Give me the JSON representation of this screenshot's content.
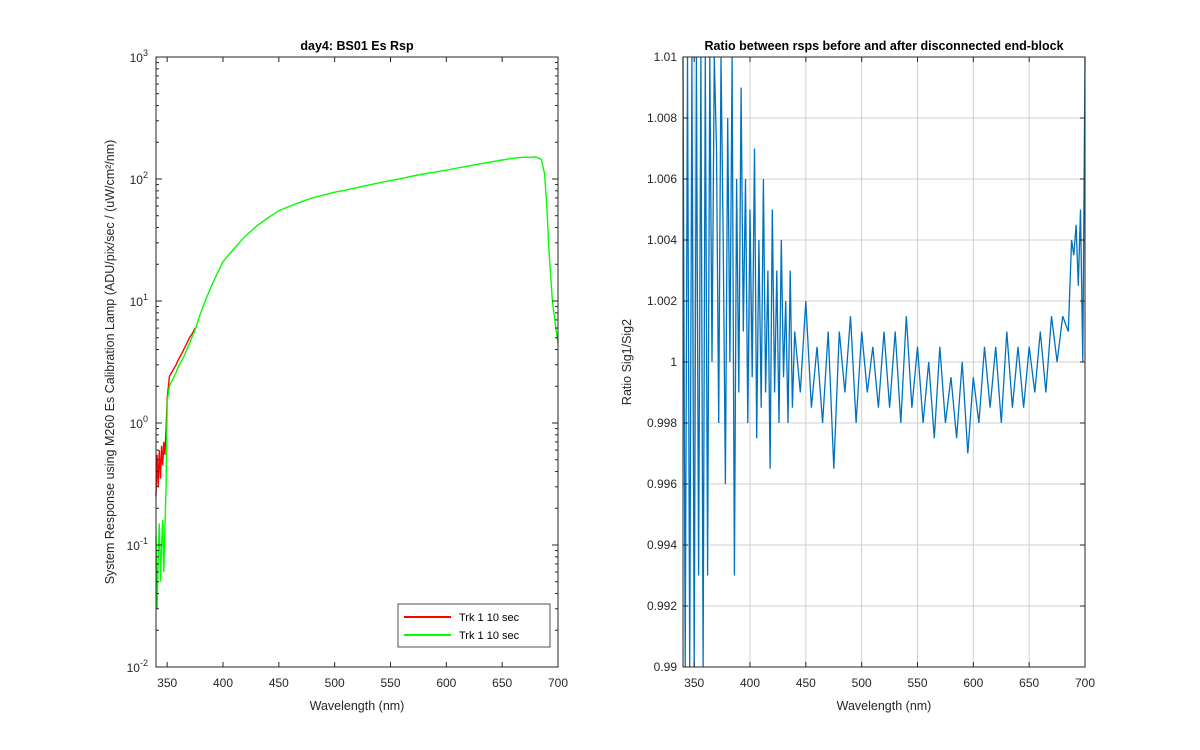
{
  "colors": {
    "axis": "#262626",
    "grid": "#d0d0d0",
    "series_red": "#ff0000",
    "series_green": "#00ff00",
    "series_blue": "#0072bd"
  },
  "chart_data": [
    {
      "type": "line",
      "title": "day4: BS01 Es Rsp",
      "xlabel": "Wavelength (nm)",
      "ylabel": "System Response using M260 Es Calibration Lamp  (ADU/pix/sec / (uW/cm²/nm)",
      "xlim": [
        340,
        700
      ],
      "ylim": [
        0.01,
        1000
      ],
      "yscale": "log",
      "grid": false,
      "legend_position": "bottom-right",
      "x_ticks": [
        350,
        400,
        450,
        500,
        550,
        600,
        650,
        700
      ],
      "x_tick_labels": [
        "350",
        "400",
        "450",
        "500",
        "550",
        "600",
        "650",
        "700"
      ],
      "y_ticks": [
        0.01,
        0.1,
        1,
        10,
        100,
        1000
      ],
      "y_tick_base": "10",
      "y_tick_exponents": [
        "-2",
        "-1",
        "0",
        "1",
        "2",
        "3"
      ],
      "legend": [
        "Trk 1  10 sec",
        "Trk 1  10 sec"
      ],
      "series": [
        {
          "name": "Trk 1  10 sec",
          "color": "#ff0000",
          "x": [
            340,
            341,
            342,
            343,
            344,
            345,
            346,
            347,
            348,
            349,
            350,
            352,
            355,
            358,
            360,
            363,
            366,
            370,
            373,
            375
          ],
          "y": [
            0.25,
            0.55,
            0.3,
            0.6,
            0.35,
            0.65,
            0.45,
            0.7,
            0.55,
            0.9,
            1.6,
            2.4,
            2.7,
            3.0,
            3.3,
            3.7,
            4.2,
            5.0,
            5.5,
            6.0
          ]
        },
        {
          "name": "Trk 1  10 sec",
          "color": "#00ff00",
          "x": [
            340,
            341,
            342,
            343,
            344,
            345,
            346,
            347,
            348,
            349,
            350,
            352,
            355,
            358,
            360,
            365,
            370,
            375,
            380,
            385,
            390,
            395,
            400,
            410,
            420,
            430,
            440,
            450,
            460,
            470,
            480,
            490,
            500,
            510,
            520,
            530,
            540,
            550,
            560,
            570,
            580,
            590,
            600,
            610,
            620,
            630,
            640,
            650,
            660,
            670,
            675,
            680,
            685,
            688,
            690,
            692,
            695,
            698,
            700
          ],
          "y": [
            0.12,
            0.03,
            0.08,
            0.15,
            0.05,
            0.1,
            0.16,
            0.06,
            0.14,
            0.3,
            1.5,
            2.0,
            2.3,
            2.6,
            2.9,
            3.5,
            4.5,
            5.8,
            8.0,
            10.5,
            13.5,
            17.0,
            21.0,
            27.0,
            34.0,
            41.0,
            48.0,
            55.0,
            60.0,
            65.0,
            70.0,
            74.0,
            78.0,
            81.0,
            85.0,
            89.0,
            93.0,
            97.0,
            101.0,
            106.0,
            110.0,
            114.0,
            118.0,
            123.0,
            128.0,
            133.0,
            138.0,
            143.0,
            148.0,
            151.0,
            150.0,
            152.0,
            145.0,
            110.0,
            60.0,
            25.0,
            10.0,
            6.0,
            4.5
          ]
        }
      ]
    },
    {
      "type": "line",
      "title": "Ratio between rsps before and after disconnected end-block",
      "xlabel": "Wavelength (nm)",
      "ylabel": "Ratio Sig1/Sig2",
      "xlim": [
        340,
        700
      ],
      "ylim": [
        0.99,
        1.01
      ],
      "grid": true,
      "x_ticks": [
        350,
        400,
        450,
        500,
        550,
        600,
        650,
        700
      ],
      "x_tick_labels": [
        "350",
        "400",
        "450",
        "500",
        "550",
        "600",
        "650",
        "700"
      ],
      "y_ticks": [
        0.99,
        0.992,
        0.994,
        0.996,
        0.998,
        1,
        1.002,
        1.004,
        1.006,
        1.008,
        1.01
      ],
      "y_tick_labels": [
        "0.99",
        "0.992",
        "0.994",
        "0.996",
        "0.998",
        "1",
        "1.002",
        "1.004",
        "1.006",
        "1.008",
        "1.01"
      ],
      "series": [
        {
          "color": "#0072bd",
          "x": [
            340,
            342,
            344,
            346,
            348,
            350,
            352,
            354,
            356,
            358,
            360,
            362,
            364,
            366,
            368,
            370,
            372,
            374,
            376,
            378,
            380,
            382,
            384,
            386,
            388,
            390,
            392,
            394,
            396,
            398,
            400,
            402,
            404,
            406,
            408,
            410,
            412,
            414,
            416,
            418,
            420,
            422,
            424,
            426,
            428,
            430,
            432,
            434,
            436,
            438,
            440,
            445,
            450,
            455,
            460,
            465,
            470,
            475,
            480,
            485,
            490,
            495,
            500,
            505,
            510,
            515,
            520,
            525,
            530,
            535,
            540,
            545,
            550,
            555,
            560,
            565,
            570,
            575,
            580,
            585,
            590,
            595,
            600,
            605,
            610,
            615,
            620,
            625,
            630,
            635,
            640,
            645,
            650,
            655,
            660,
            665,
            670,
            675,
            680,
            685,
            688,
            690,
            692,
            694,
            696,
            698,
            700
          ],
          "y": [
            1.01,
            0.99,
            1.01,
            0.99,
            1.01,
            0.99,
            1.01,
            0.993,
            1.01,
            0.99,
            1.01,
            0.993,
            1.01,
            1.0,
            1.01,
            1.007,
            0.998,
            1.01,
            1.004,
            0.996,
            1.008,
            1.0,
            1.01,
            0.993,
            1.006,
            0.999,
            1.009,
            1.001,
            1.006,
            0.998,
            1.005,
            0.9995,
            1.007,
            0.9975,
            1.004,
            0.9985,
            1.006,
            0.999,
            1.003,
            0.9965,
            1.005,
            0.999,
            1.003,
            0.998,
            1.004,
            0.9995,
            1.002,
            0.998,
            1.003,
            0.9985,
            1.001,
            0.999,
            1.002,
            0.9985,
            1.0005,
            0.998,
            1.001,
            0.9965,
            1.001,
            0.999,
            1.0015,
            0.998,
            1.001,
            0.999,
            1.0005,
            0.9985,
            1.001,
            0.9985,
            1.001,
            0.998,
            1.0015,
            0.9985,
            1.0005,
            0.998,
            1.0,
            0.9975,
            1.0005,
            0.998,
            0.9995,
            0.9975,
            1.0,
            0.997,
            0.9995,
            0.998,
            1.0005,
            0.9985,
            1.0005,
            0.998,
            1.001,
            0.9985,
            1.0005,
            0.9985,
            1.0005,
            0.999,
            1.001,
            0.999,
            1.0015,
            1.0,
            1.0015,
            1.001,
            1.004,
            1.0035,
            1.0045,
            1.0025,
            1.005,
            1.0,
            1.01
          ]
        }
      ]
    }
  ]
}
